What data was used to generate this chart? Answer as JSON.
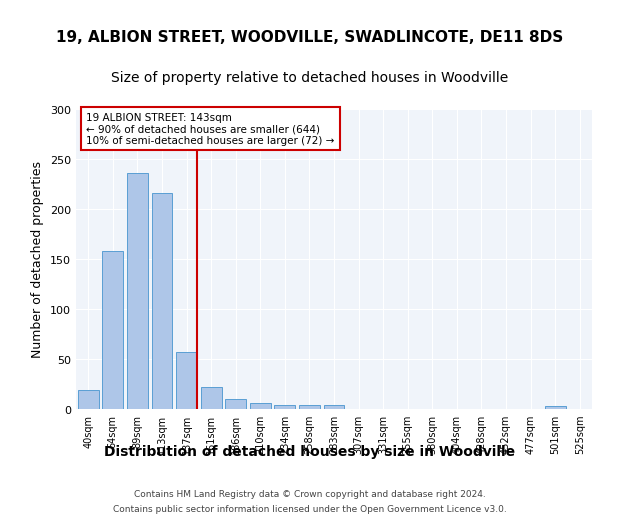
{
  "title1": "19, ALBION STREET, WOODVILLE, SWADLINCOTE, DE11 8DS",
  "title2": "Size of property relative to detached houses in Woodville",
  "xlabel": "Distribution of detached houses by size in Woodville",
  "ylabel": "Number of detached properties",
  "categories": [
    "40sqm",
    "64sqm",
    "89sqm",
    "113sqm",
    "137sqm",
    "161sqm",
    "186sqm",
    "210sqm",
    "234sqm",
    "258sqm",
    "283sqm",
    "307sqm",
    "331sqm",
    "355sqm",
    "380sqm",
    "404sqm",
    "428sqm",
    "452sqm",
    "477sqm",
    "501sqm",
    "525sqm"
  ],
  "values": [
    19,
    158,
    236,
    216,
    57,
    22,
    10,
    6,
    4,
    4,
    4,
    0,
    0,
    0,
    0,
    0,
    0,
    0,
    0,
    3,
    0
  ],
  "bar_color": "#aec6e8",
  "bar_edge_color": "#5a9fd4",
  "vline_color": "#cc0000",
  "annotation_text": "19 ALBION STREET: 143sqm\n← 90% of detached houses are smaller (644)\n10% of semi-detached houses are larger (72) →",
  "annotation_box_color": "#cc0000",
  "ylim": [
    0,
    300
  ],
  "yticks": [
    0,
    50,
    100,
    150,
    200,
    250,
    300
  ],
  "footer1": "Contains HM Land Registry data © Crown copyright and database right 2024.",
  "footer2": "Contains public sector information licensed under the Open Government Licence v3.0.",
  "bg_color": "#f0f4fa",
  "title1_fontsize": 11,
  "title2_fontsize": 10,
  "xlabel_fontsize": 10,
  "ylabel_fontsize": 9
}
